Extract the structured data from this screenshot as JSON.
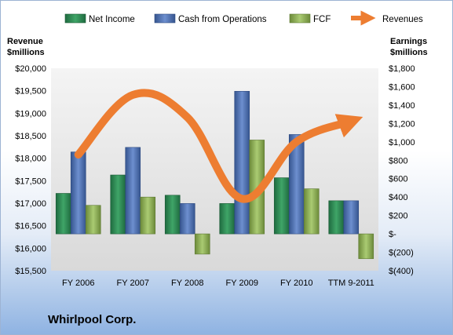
{
  "chart_data": {
    "type": "bar",
    "title": "",
    "company": "Whirlpool Corp.",
    "left_axis": {
      "label_line1": "Revenue",
      "label_line2": "$millions",
      "range": [
        15500,
        20000
      ],
      "ticks": [
        "$20,000",
        "$19,500",
        "$19,000",
        "$18,500",
        "$18,000",
        "$17,500",
        "$17,000",
        "$16,500",
        "$16,000",
        "$15,500"
      ],
      "tick_values": [
        20000,
        19500,
        19000,
        18500,
        18000,
        17500,
        17000,
        16500,
        16000,
        15500
      ]
    },
    "right_axis": {
      "label_line1": "Earnings",
      "label_line2": "$millions",
      "range": [
        -400,
        1800
      ],
      "ticks": [
        "$1,800",
        "$1,600",
        "$1,400",
        "$1,200",
        "$1,000",
        "$800",
        "$600",
        "$400",
        "$200",
        "$-",
        "$(200)",
        "$(400)"
      ],
      "tick_values": [
        1800,
        1600,
        1400,
        1200,
        1000,
        800,
        600,
        400,
        200,
        0,
        -200,
        -400
      ]
    },
    "categories": [
      "FY 2006",
      "FY 2007",
      "FY 2008",
      "FY 2009",
      "FY 2010",
      "TTM 9-2011"
    ],
    "legend": [
      "Net Income",
      "Cash from Operations",
      "FCF",
      "Revenues"
    ],
    "series": [
      {
        "name": "Net Income",
        "axis": "right",
        "type": "bar",
        "color": "#2e8b57",
        "values": [
          440,
          640,
          420,
          330,
          610,
          360
        ]
      },
      {
        "name": "Cash from Operations",
        "axis": "right",
        "type": "bar",
        "color": "#4f73b8",
        "values": [
          890,
          940,
          330,
          1550,
          1080,
          360
        ]
      },
      {
        "name": "FCF",
        "axis": "right",
        "type": "bar",
        "color": "#8fae55",
        "values": [
          310,
          400,
          -220,
          1020,
          490,
          -270
        ]
      },
      {
        "name": "Revenues",
        "axis": "left",
        "type": "line",
        "color": "#ed7d31",
        "values": [
          18080,
          19408,
          18907,
          17099,
          18366,
          18820
        ]
      }
    ]
  }
}
